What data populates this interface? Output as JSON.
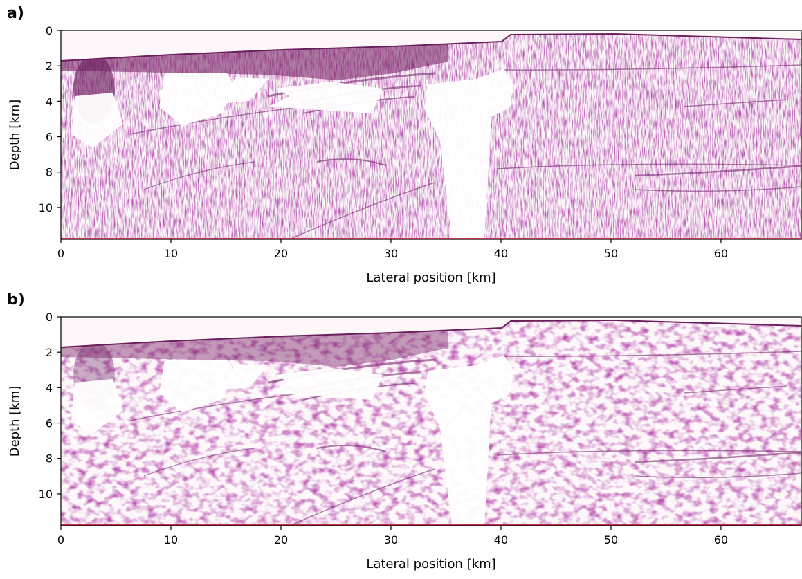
{
  "chart_data": [
    {
      "type": "image",
      "label": "a)",
      "xlabel": "Lateral position [km]",
      "ylabel": "Depth [km]",
      "xlim": [
        0,
        67.3
      ],
      "ylim": [
        11.8,
        0
      ],
      "xticks": [
        0,
        10,
        20,
        30,
        40,
        50,
        60
      ],
      "yticks": [
        0,
        2,
        4,
        6,
        8,
        10
      ]
    },
    {
      "type": "image",
      "label": "b)",
      "xlabel": "Lateral position [km]",
      "ylabel": "Depth [km]",
      "xlim": [
        0,
        67.3
      ],
      "ylim": [
        11.8,
        0
      ],
      "xticks": [
        0,
        10,
        20,
        30,
        40,
        50,
        60
      ],
      "yticks": [
        0,
        2,
        4,
        6,
        8,
        10
      ]
    }
  ]
}
